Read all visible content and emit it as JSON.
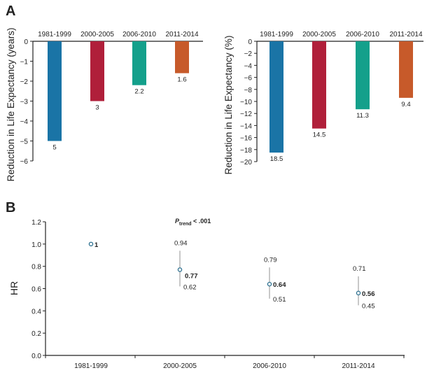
{
  "panel_labels": {
    "a": "A",
    "b": "B"
  },
  "colors": {
    "1981-1999": "#1a74a6",
    "2000-2005": "#b01f3a",
    "2006-2010": "#14a08b",
    "2011-2014": "#c75a2a",
    "marker": "#2b6f8f"
  },
  "chart_data": [
    {
      "type": "bar",
      "panel": "A-left",
      "categories": [
        "1981-1999",
        "2000-2005",
        "2006-2010",
        "2011-2014"
      ],
      "values": [
        -5,
        -3,
        -2.2,
        -1.6
      ],
      "data_labels": [
        "5",
        "3",
        "2.2",
        "1.6"
      ],
      "ylabel": "Reduction in Life Expectancy (years)",
      "ylim": [
        -6,
        0
      ],
      "yticks": [
        0,
        -1,
        -2,
        -3,
        -4,
        -5,
        -6
      ],
      "ytick_labels": [
        "0",
        "−1",
        "−2",
        "−3",
        "−4",
        "−5",
        "−6"
      ],
      "grid": false
    },
    {
      "type": "bar",
      "panel": "A-right",
      "categories": [
        "1981-1999",
        "2000-2005",
        "2006-2010",
        "2011-2014"
      ],
      "values": [
        -18.5,
        -14.5,
        -11.3,
        -9.4
      ],
      "data_labels": [
        "18.5",
        "14.5",
        "11.3",
        "9.4"
      ],
      "ylabel": "Reduction in Life Expectancy (%)",
      "ylim": [
        -20,
        0
      ],
      "yticks": [
        0,
        -2,
        -4,
        -6,
        -8,
        -10,
        -12,
        -14,
        -16,
        -18,
        -20
      ],
      "ytick_labels": [
        "0",
        "−2",
        "−4",
        "−6",
        "−8",
        "−10",
        "−12",
        "−14",
        "−16",
        "−18",
        "−20"
      ],
      "grid": false
    },
    {
      "type": "scatter",
      "panel": "B",
      "categories": [
        "1981-1999",
        "2000-2005",
        "2006-2010",
        "2011-2014"
      ],
      "hr": [
        1,
        0.77,
        0.64,
        0.56
      ],
      "hr_labels": [
        "1",
        "0.77",
        "0.64",
        "0.56"
      ],
      "ci_low": [
        null,
        0.62,
        0.51,
        0.45
      ],
      "ci_high": [
        null,
        0.94,
        0.79,
        0.71
      ],
      "ci_low_labels": [
        "",
        "0.62",
        "0.51",
        "0.45"
      ],
      "ci_high_labels": [
        "",
        "0.94",
        "0.79",
        "0.71"
      ],
      "ylabel": "HR",
      "ylim": [
        0,
        1.2
      ],
      "yticks": [
        0,
        0.2,
        0.4,
        0.6,
        0.8,
        1.0,
        1.2
      ],
      "ytick_labels": [
        "0.0",
        "0.2",
        "0.4",
        "0.6",
        "0.8",
        "1.0",
        "1.2"
      ],
      "annotation": {
        "p": "P",
        "sub": "trend",
        "rest": " < .001"
      },
      "grid": false
    }
  ]
}
